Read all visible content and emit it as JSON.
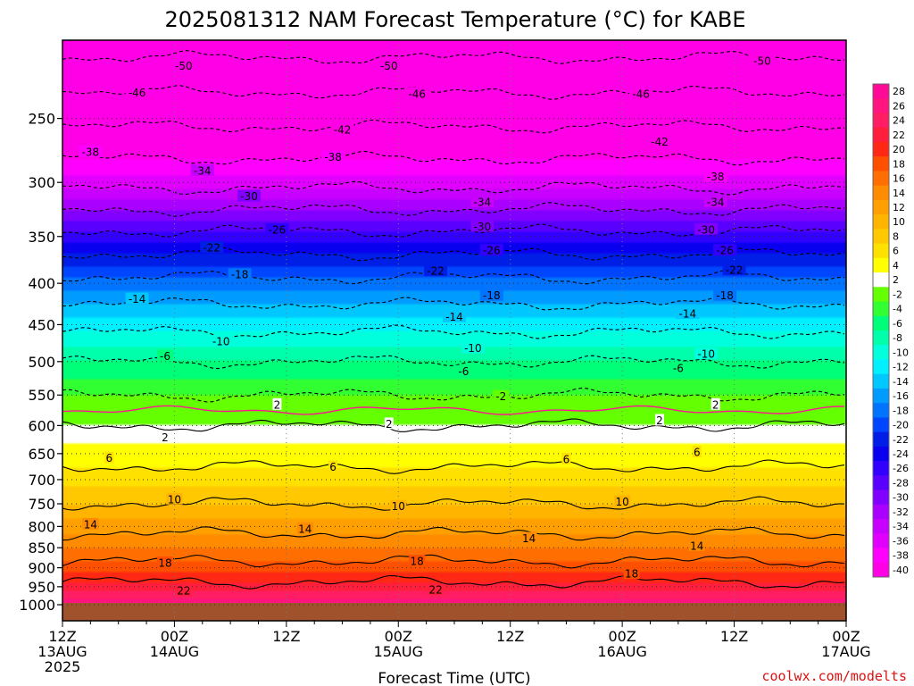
{
  "title": "2025081312 NAM Forecast Temperature (°C) for KABE",
  "credit": "coolwx.com/modelts",
  "chart_data": {
    "type": "heatmap",
    "title": "2025081312 NAM Forecast Temperature (°C) for KABE",
    "xlabel": "Forecast Time (UTC)",
    "ylabel": "",
    "x_ticks": [
      {
        "hours": 0,
        "lines": [
          "12Z",
          "13AUG",
          "2025"
        ]
      },
      {
        "hours": 12,
        "lines": [
          "00Z",
          "14AUG"
        ]
      },
      {
        "hours": 24,
        "lines": [
          "12Z"
        ]
      },
      {
        "hours": 36,
        "lines": [
          "00Z",
          "15AUG"
        ]
      },
      {
        "hours": 48,
        "lines": [
          "12Z"
        ]
      },
      {
        "hours": 60,
        "lines": [
          "00Z",
          "16AUG"
        ]
      },
      {
        "hours": 72,
        "lines": [
          "12Z"
        ]
      },
      {
        "hours": 84,
        "lines": [
          "00Z",
          "17AUG"
        ]
      }
    ],
    "xlim": [
      0,
      84
    ],
    "y_scale": "log-pressure",
    "ylim_hPa": [
      1000,
      200
    ],
    "y_ticks": [
      250,
      300,
      350,
      400,
      450,
      500,
      550,
      600,
      650,
      700,
      750,
      800,
      850,
      900,
      950,
      1000
    ],
    "grid": true,
    "colorbar": {
      "labels": [
        "28",
        "26",
        "24",
        "22",
        "20",
        "18",
        "16",
        "14",
        "12",
        "10",
        "8",
        "6",
        "4",
        "2",
        "-2",
        "-4",
        "-6",
        "-8",
        "-10",
        "-12",
        "-14",
        "-16",
        "-18",
        "-20",
        "-22",
        "-24",
        "-26",
        "-28",
        "-30",
        "-32",
        "-34",
        "-36",
        "-38",
        "-40"
      ],
      "colors": [
        "#ff0a96",
        "#ff1480",
        "#ff1e64",
        "#ff1e3c",
        "#ff2814",
        "#ff5000",
        "#ff6e00",
        "#ff8c00",
        "#ffa000",
        "#ffb400",
        "#ffc800",
        "#ffe100",
        "#ffff00",
        "#ffffff",
        "#64ff00",
        "#32ff32",
        "#00ff78",
        "#00ffaa",
        "#00ffdc",
        "#00f0ff",
        "#00c8ff",
        "#009bff",
        "#0073ff",
        "#0046ff",
        "#001ee6",
        "#0a00f0",
        "#3200ff",
        "#5a00ff",
        "#8200ff",
        "#aa00ff",
        "#c800ff",
        "#e100ff",
        "#ff00ff",
        "#ff00e6"
      ]
    },
    "profile": [
      {
        "p": 1000,
        "t": 27
      },
      {
        "p": 950,
        "t": 23
      },
      {
        "p": 900,
        "t": 19
      },
      {
        "p": 850,
        "t": 16
      },
      {
        "p": 800,
        "t": 13
      },
      {
        "p": 750,
        "t": 10
      },
      {
        "p": 700,
        "t": 7
      },
      {
        "p": 650,
        "t": 5
      },
      {
        "p": 600,
        "t": 2
      },
      {
        "p": 550,
        "t": -2
      },
      {
        "p": 500,
        "t": -6
      },
      {
        "p": 450,
        "t": -11
      },
      {
        "p": 400,
        "t": -17
      },
      {
        "p": 350,
        "t": -25
      },
      {
        "p": 300,
        "t": -35
      },
      {
        "p": 250,
        "t": -43
      },
      {
        "p": 200,
        "t": -52
      }
    ],
    "contour_labels": [
      {
        "text": "-50",
        "h": 13,
        "p": 215
      },
      {
        "text": "-50",
        "h": 35,
        "p": 215
      },
      {
        "text": "-50",
        "h": 75,
        "p": 212
      },
      {
        "text": "-46",
        "h": 8,
        "p": 232
      },
      {
        "text": "-46",
        "h": 38,
        "p": 233
      },
      {
        "text": "-46",
        "h": 62,
        "p": 233
      },
      {
        "text": "-42",
        "h": 30,
        "p": 258
      },
      {
        "text": "-42",
        "h": 64,
        "p": 267
      },
      {
        "text": "-38",
        "h": 3,
        "p": 275
      },
      {
        "text": "-38",
        "h": 29,
        "p": 279
      },
      {
        "text": "-38",
        "h": 70,
        "p": 295
      },
      {
        "text": "-34",
        "h": 15,
        "p": 290
      },
      {
        "text": "-34",
        "h": 45,
        "p": 317
      },
      {
        "text": "-34",
        "h": 70,
        "p": 317
      },
      {
        "text": "-30",
        "h": 20,
        "p": 312
      },
      {
        "text": "-30",
        "h": 45,
        "p": 340
      },
      {
        "text": "-30",
        "h": 69,
        "p": 343
      },
      {
        "text": "-26",
        "h": 23,
        "p": 343
      },
      {
        "text": "-26",
        "h": 46,
        "p": 364
      },
      {
        "text": "-26",
        "h": 71,
        "p": 364
      },
      {
        "text": "-22",
        "h": 16,
        "p": 361
      },
      {
        "text": "-22",
        "h": 40,
        "p": 386
      },
      {
        "text": "-22",
        "h": 72,
        "p": 385
      },
      {
        "text": "-18",
        "h": 19,
        "p": 390
      },
      {
        "text": "-18",
        "h": 46,
        "p": 414
      },
      {
        "text": "-18",
        "h": 71,
        "p": 414
      },
      {
        "text": "-14",
        "h": 8,
        "p": 418
      },
      {
        "text": "-14",
        "h": 42,
        "p": 440
      },
      {
        "text": "-14",
        "h": 67,
        "p": 436
      },
      {
        "text": "-10",
        "h": 17,
        "p": 472
      },
      {
        "text": "-10",
        "h": 44,
        "p": 481
      },
      {
        "text": "-10",
        "h": 69,
        "p": 489
      },
      {
        "text": "-6",
        "h": 11,
        "p": 492
      },
      {
        "text": "-6",
        "h": 43,
        "p": 514
      },
      {
        "text": "-6",
        "h": 66,
        "p": 509
      },
      {
        "text": "2",
        "h": 23,
        "p": 565
      },
      {
        "text": "-2",
        "h": 47,
        "p": 552
      },
      {
        "text": "2",
        "h": 70,
        "p": 565
      },
      {
        "text": "2",
        "h": 11,
        "p": 620
      },
      {
        "text": "2",
        "h": 35,
        "p": 597
      },
      {
        "text": "2",
        "h": 64,
        "p": 591
      },
      {
        "text": "6",
        "h": 5,
        "p": 658
      },
      {
        "text": "6",
        "h": 29,
        "p": 675
      },
      {
        "text": "6",
        "h": 54,
        "p": 660
      },
      {
        "text": "6",
        "h": 68,
        "p": 647
      },
      {
        "text": "10",
        "h": 12,
        "p": 740
      },
      {
        "text": "10",
        "h": 36,
        "p": 755
      },
      {
        "text": "10",
        "h": 60,
        "p": 745
      },
      {
        "text": "14",
        "h": 3,
        "p": 795
      },
      {
        "text": "14",
        "h": 26,
        "p": 805
      },
      {
        "text": "14",
        "h": 50,
        "p": 827
      },
      {
        "text": "14",
        "h": 68,
        "p": 845
      },
      {
        "text": "18",
        "h": 11,
        "p": 887
      },
      {
        "text": "18",
        "h": 38,
        "p": 883
      },
      {
        "text": "18",
        "h": 61,
        "p": 915
      },
      {
        "text": "22",
        "h": 13,
        "p": 960
      },
      {
        "text": "22",
        "h": 40,
        "p": 958
      }
    ]
  }
}
